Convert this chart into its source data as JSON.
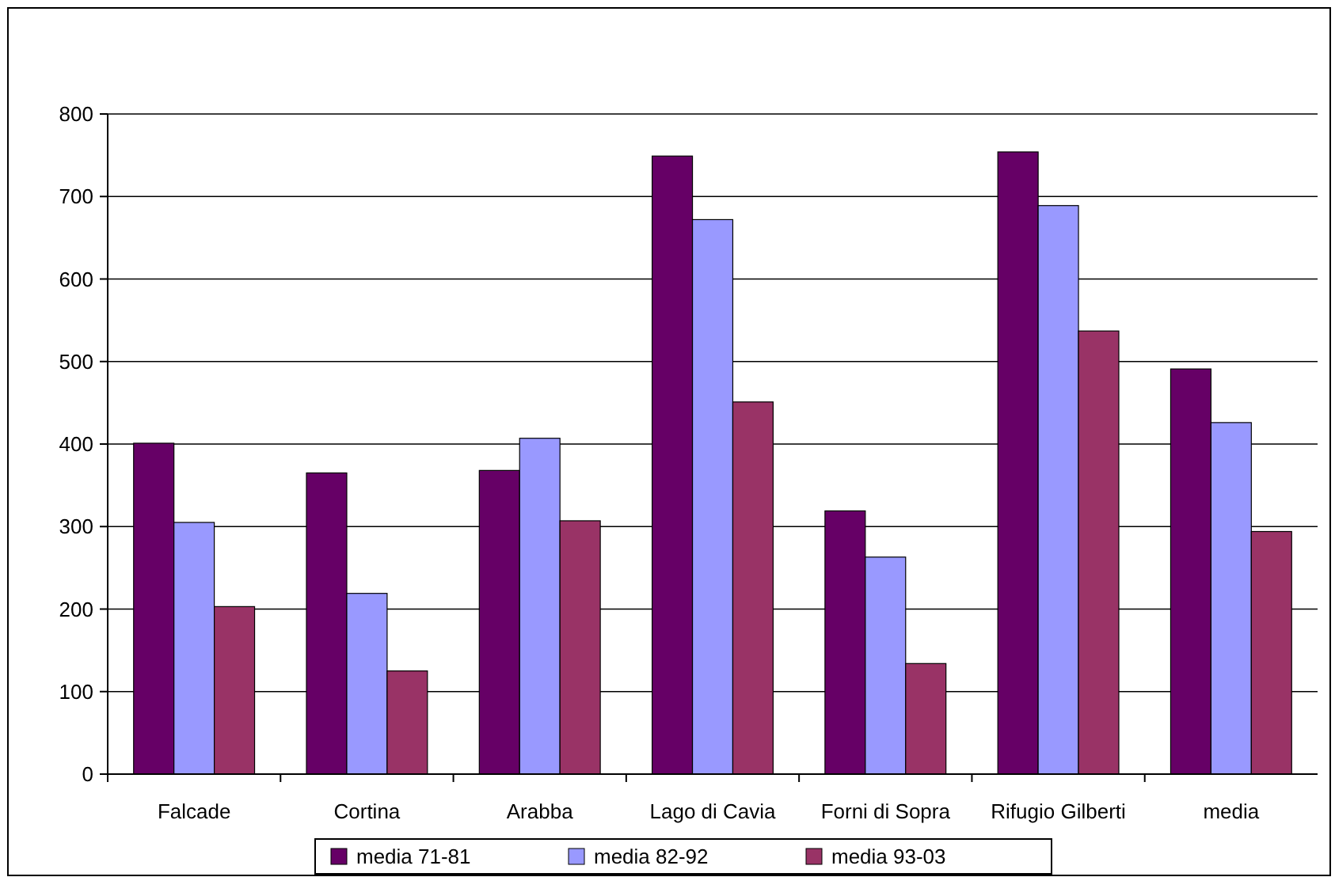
{
  "chart_data": {
    "type": "bar",
    "categories": [
      "Falcade",
      "Cortina",
      "Arabba",
      "Lago di Cavia",
      "Forni di Sopra",
      "Rifugio Gilberti",
      "media"
    ],
    "series": [
      {
        "name": "media 71-81",
        "color": "#660066",
        "values": [
          401,
          365,
          368,
          749,
          319,
          754,
          491
        ]
      },
      {
        "name": "media 82-92",
        "color": "#9999ff",
        "values": [
          305,
          219,
          407,
          672,
          263,
          689,
          426
        ]
      },
      {
        "name": "media 93-03",
        "color": "#993366",
        "values": [
          203,
          125,
          307,
          451,
          134,
          537,
          294
        ]
      }
    ],
    "ylim": [
      0,
      800
    ],
    "yticks": [
      0,
      100,
      200,
      300,
      400,
      500,
      600,
      700,
      800
    ],
    "grid": "y",
    "legend": "bottom"
  }
}
